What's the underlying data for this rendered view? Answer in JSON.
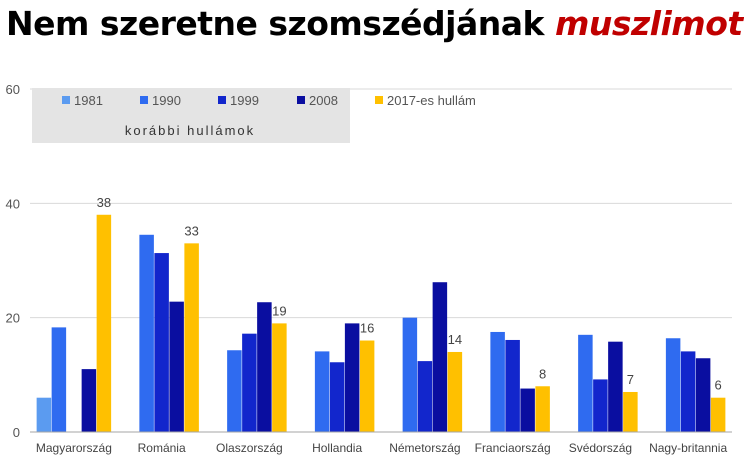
{
  "title": {
    "prefix": "Nem szeretne szomszédjának",
    "highlight": "muszlimot"
  },
  "colors": {
    "title_highlight": "#c00000",
    "legend_box": "#e4e4e4",
    "grid": "#d9d9d9"
  },
  "legend": {
    "note": "korábbi hullámok",
    "position": "top-left"
  },
  "chart_data": {
    "type": "bar",
    "categories": [
      "Magyarország",
      "Románia",
      "Olaszország",
      "Hollandia",
      "Németország",
      "Franciaország",
      "Svédország",
      "Nagy-britannia"
    ],
    "series": [
      {
        "name": "1981",
        "color": "#5b9bf0",
        "values": [
          6,
          null,
          null,
          null,
          null,
          null,
          null,
          null
        ]
      },
      {
        "name": "1990",
        "color": "#2f6bf0",
        "values": [
          18.3,
          34.5,
          14.3,
          14.1,
          20,
          17.5,
          17,
          16.4
        ]
      },
      {
        "name": "1999",
        "color": "#1226cc",
        "values": [
          null,
          31.3,
          17.2,
          12.2,
          12.4,
          16.1,
          9.2,
          14.1
        ]
      },
      {
        "name": "2008",
        "color": "#0a0ea0",
        "values": [
          11,
          22.8,
          22.7,
          19,
          26.2,
          7.6,
          15.8,
          12.9
        ]
      },
      {
        "name": "2017-es hullám",
        "color": "#ffc000",
        "values": [
          38,
          33,
          19,
          16,
          14,
          8,
          7,
          6
        ]
      }
    ],
    "data_labels": [
      "38",
      "33",
      "19",
      "16",
      "14",
      "8",
      "7",
      "6"
    ],
    "ylim": [
      0,
      60
    ],
    "yticks": [
      "0",
      "20",
      "40",
      "60"
    ],
    "grid": true,
    "xlabel": "",
    "ylabel": ""
  }
}
